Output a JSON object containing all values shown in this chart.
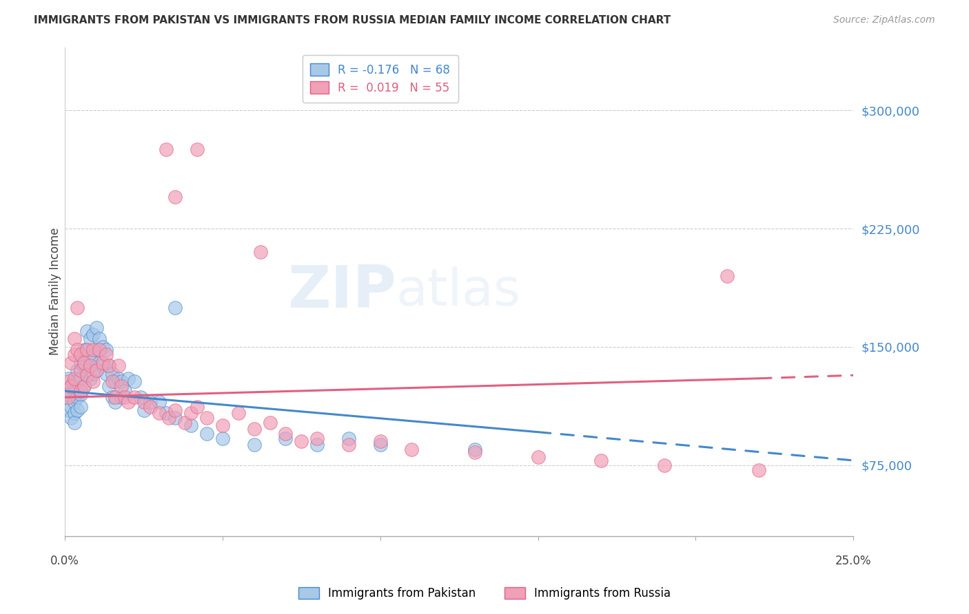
{
  "title": "IMMIGRANTS FROM PAKISTAN VS IMMIGRANTS FROM RUSSIA MEDIAN FAMILY INCOME CORRELATION CHART",
  "source": "Source: ZipAtlas.com",
  "ylabel": "Median Family Income",
  "y_ticks": [
    75000,
    150000,
    225000,
    300000
  ],
  "y_tick_labels": [
    "$75,000",
    "$150,000",
    "$225,000",
    "$300,000"
  ],
  "xlim": [
    0.0,
    0.25
  ],
  "ylim": [
    30000,
    340000
  ],
  "watermark": "ZIPatlas",
  "pakistan_color": "#a8c8e8",
  "russia_color": "#f0a0b8",
  "pakistan_line_color": "#4488cc",
  "russia_line_color": "#e06080",
  "legend_pakistan_label": "R = -0.176   N = 68",
  "legend_russia_label": "R =  0.019   N = 55",
  "pakistan_x": [
    0.001,
    0.001,
    0.001,
    0.002,
    0.002,
    0.002,
    0.002,
    0.003,
    0.003,
    0.003,
    0.003,
    0.003,
    0.004,
    0.004,
    0.004,
    0.004,
    0.005,
    0.005,
    0.005,
    0.005,
    0.006,
    0.006,
    0.006,
    0.007,
    0.007,
    0.007,
    0.008,
    0.008,
    0.008,
    0.009,
    0.009,
    0.009,
    0.01,
    0.01,
    0.01,
    0.011,
    0.011,
    0.012,
    0.012,
    0.013,
    0.013,
    0.014,
    0.014,
    0.015,
    0.015,
    0.016,
    0.016,
    0.017,
    0.018,
    0.018,
    0.019,
    0.02,
    0.022,
    0.024,
    0.025,
    0.027,
    0.03,
    0.032,
    0.035,
    0.04,
    0.045,
    0.05,
    0.06,
    0.07,
    0.08,
    0.09,
    0.1,
    0.13
  ],
  "pakistan_y": [
    130000,
    120000,
    110000,
    125000,
    118000,
    112000,
    105000,
    128000,
    122000,
    115000,
    108000,
    102000,
    135000,
    128000,
    118000,
    110000,
    140000,
    130000,
    120000,
    112000,
    148000,
    138000,
    125000,
    160000,
    148000,
    135000,
    155000,
    143000,
    130000,
    158000,
    145000,
    133000,
    162000,
    148000,
    135000,
    155000,
    140000,
    150000,
    138000,
    148000,
    133000,
    138000,
    125000,
    133000,
    118000,
    128000,
    115000,
    130000,
    128000,
    118000,
    122000,
    130000,
    128000,
    118000,
    110000,
    115000,
    115000,
    108000,
    105000,
    100000,
    95000,
    92000,
    88000,
    92000,
    88000,
    92000,
    88000,
    85000
  ],
  "russia_x": [
    0.001,
    0.001,
    0.002,
    0.002,
    0.003,
    0.003,
    0.003,
    0.004,
    0.004,
    0.005,
    0.005,
    0.005,
    0.006,
    0.006,
    0.007,
    0.007,
    0.008,
    0.009,
    0.009,
    0.01,
    0.011,
    0.012,
    0.013,
    0.014,
    0.015,
    0.016,
    0.017,
    0.018,
    0.019,
    0.02,
    0.022,
    0.025,
    0.027,
    0.03,
    0.033,
    0.035,
    0.038,
    0.04,
    0.042,
    0.045,
    0.05,
    0.055,
    0.06,
    0.065,
    0.07,
    0.075,
    0.08,
    0.09,
    0.1,
    0.11,
    0.13,
    0.15,
    0.17,
    0.19,
    0.22
  ],
  "russia_y": [
    128000,
    118000,
    140000,
    125000,
    155000,
    145000,
    130000,
    175000,
    148000,
    145000,
    135000,
    122000,
    140000,
    125000,
    148000,
    132000,
    138000,
    148000,
    128000,
    135000,
    148000,
    140000,
    145000,
    138000,
    128000,
    118000,
    138000,
    125000,
    118000,
    115000,
    118000,
    115000,
    112000,
    108000,
    105000,
    110000,
    102000,
    108000,
    112000,
    105000,
    100000,
    108000,
    98000,
    102000,
    95000,
    90000,
    92000,
    88000,
    90000,
    85000,
    83000,
    80000,
    78000,
    75000,
    72000
  ]
}
